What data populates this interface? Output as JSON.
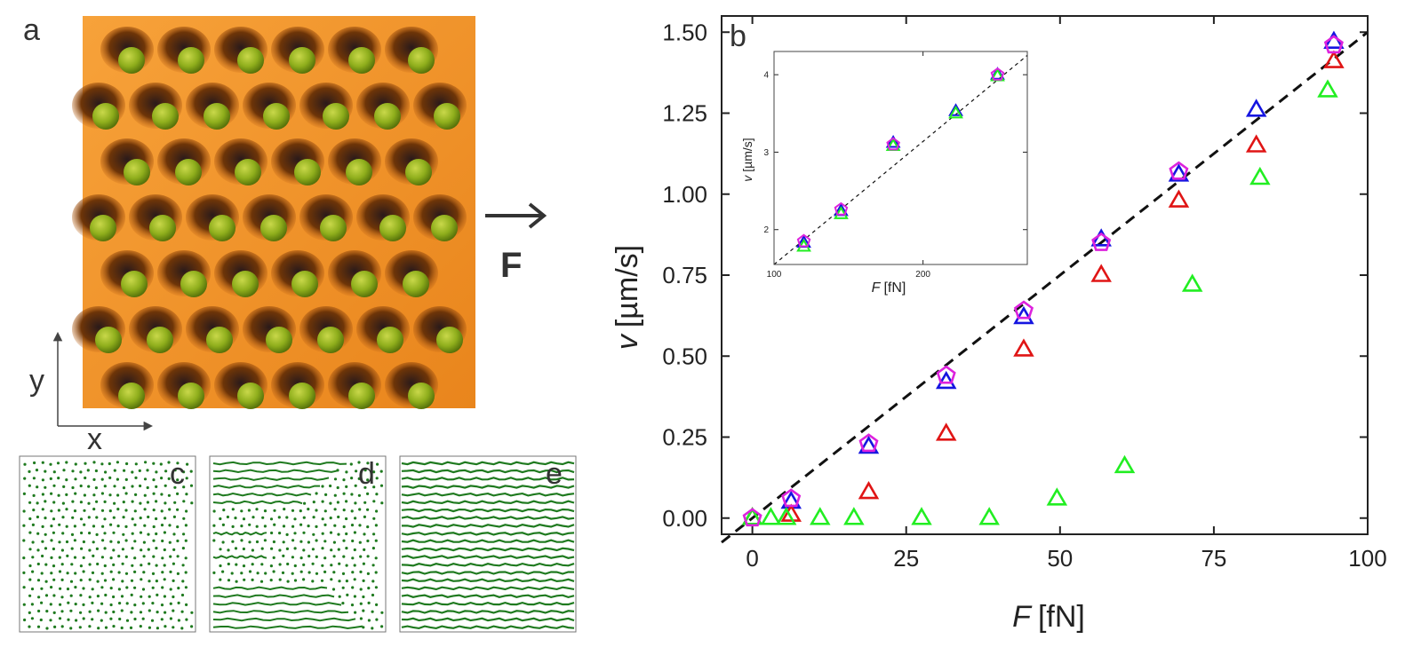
{
  "panels": {
    "a": {
      "label": "a",
      "axis_x": "x",
      "axis_y": "y",
      "force": "F"
    },
    "b": {
      "label": "b"
    },
    "c": {
      "label": "c"
    },
    "d": {
      "label": "d"
    },
    "e": {
      "label": "e"
    }
  },
  "colors": {
    "substrate": "#f08a1a",
    "particle": "#8fae1c",
    "trajectory": "#1f7a1f",
    "blue": "#1515e0",
    "red": "#e01515",
    "green": "#22ee22",
    "magenta": "#dd22dd",
    "dashed": "#111111"
  },
  "chart_data": [
    {
      "id": "main",
      "type": "scatter",
      "title": "",
      "xlabel_italic": "F",
      "xlabel_unit": "[fN]",
      "ylabel_italic": "v",
      "ylabel_unit": "[µm/s]",
      "xlim": [
        -5,
        100
      ],
      "ylim": [
        -0.05,
        1.55
      ],
      "xticks": [
        0,
        25,
        50,
        75,
        100
      ],
      "xtick_labels": [
        "0",
        "25",
        "50",
        "75",
        "100"
      ],
      "yticks": [
        0,
        0.25,
        0.5,
        0.75,
        1.0,
        1.25,
        1.5
      ],
      "ytick_labels": [
        "0.00",
        "0.25",
        "0.50",
        "0.75",
        "1.00",
        "1.25",
        "1.50"
      ],
      "fit_line": {
        "x": [
          -5,
          100
        ],
        "y": [
          -0.075,
          1.5
        ]
      },
      "series": [
        {
          "marker": "triangle",
          "color": "blue",
          "x": [
            0,
            6.3,
            18.9,
            31.5,
            44.1,
            56.7,
            69.3,
            81.9,
            94.5
          ],
          "y": [
            0.0,
            0.05,
            0.22,
            0.42,
            0.62,
            0.86,
            1.06,
            1.26,
            1.47
          ]
        },
        {
          "marker": "triangle",
          "color": "red",
          "x": [
            0,
            6.3,
            18.9,
            31.5,
            44.1,
            56.7,
            69.3,
            81.9,
            94.5
          ],
          "y": [
            0.0,
            0.01,
            0.08,
            0.26,
            0.52,
            0.75,
            0.98,
            1.15,
            1.41
          ]
        },
        {
          "marker": "triangle",
          "color": "green",
          "x": [
            0,
            3,
            5.5,
            11,
            16.5,
            27.5,
            38.5,
            49.5,
            60.5,
            71.5,
            82.5,
            93.5
          ],
          "y": [
            0.0,
            0.0,
            0.0,
            0.0,
            0.0,
            0.0,
            0.0,
            0.06,
            0.16,
            0.72,
            1.05,
            1.32
          ]
        },
        {
          "marker": "pentagon",
          "color": "magenta",
          "x": [
            0,
            6.3,
            18.9,
            31.5,
            44.1,
            56.7,
            69.3,
            94.5
          ],
          "y": [
            0.0,
            0.06,
            0.23,
            0.44,
            0.64,
            0.85,
            1.07,
            1.46
          ]
        }
      ]
    },
    {
      "id": "inset",
      "type": "scatter",
      "title": "",
      "xlabel_italic": "F",
      "xlabel_unit": "[fN]",
      "ylabel_italic": "v",
      "ylabel_unit": "[µm/s]",
      "xlim": [
        100,
        270
      ],
      "ylim": [
        1.55,
        4.3
      ],
      "xticks": [
        100,
        200
      ],
      "xtick_labels": [
        "100",
        "200"
      ],
      "yticks": [
        2,
        3,
        4
      ],
      "ytick_labels": [
        "2",
        "3",
        "4"
      ],
      "fit_line": {
        "x": [
          100,
          270
        ],
        "y": [
          1.55,
          4.25
        ]
      },
      "series": [
        {
          "marker": "triangle",
          "color": "blue",
          "x": [
            120,
            145,
            180,
            222,
            250
          ],
          "y": [
            1.83,
            2.24,
            3.12,
            3.53,
            4.0
          ]
        },
        {
          "marker": "triangle",
          "color": "green",
          "x": [
            120,
            145,
            180,
            222,
            250
          ],
          "y": [
            1.78,
            2.2,
            3.08,
            3.5,
            3.98
          ]
        },
        {
          "marker": "pentagon",
          "color": "magenta",
          "x": [
            120,
            145,
            180,
            250
          ],
          "y": [
            1.85,
            2.26,
            3.1,
            4.0
          ]
        }
      ]
    }
  ]
}
